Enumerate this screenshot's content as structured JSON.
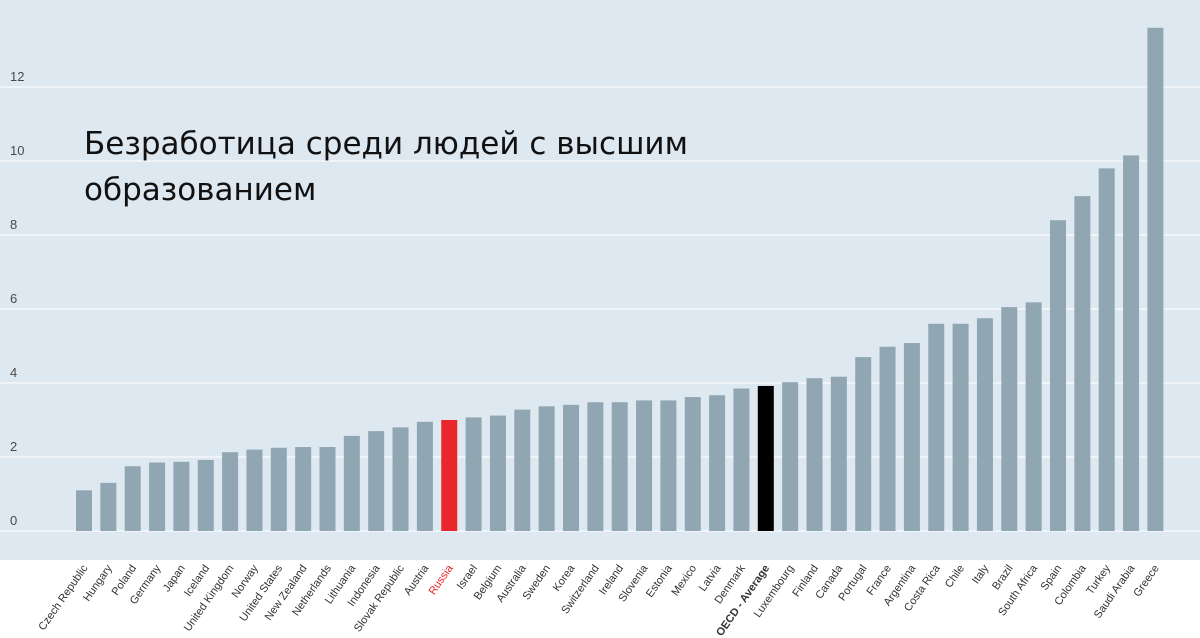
{
  "chart_data": {
    "type": "bar",
    "title": "Безработица среди людей с высшим образованием",
    "xlabel": "",
    "ylabel": "",
    "ylim": [
      0,
      13.6
    ],
    "yticks": [
      0,
      2,
      4,
      6,
      8,
      10,
      12
    ],
    "grid": true,
    "legend": "none",
    "colors": {
      "default": "#91a6b3",
      "highlight_russia": "#e8262b",
      "highlight_oecd_average": "#000000",
      "highlight_russia_label": "#e8262b",
      "label_default": "#333333",
      "plot_background": "#dde8f0"
    },
    "highlights": {
      "Russia": "highlight_russia",
      "OECD - Average": "highlight_oecd_average"
    },
    "categories": [
      "Czech Republic",
      "Hungary",
      "Poland",
      "Germany",
      "Japan",
      "Iceland",
      "United Kingdom",
      "Norway",
      "United States",
      "New Zealand",
      "Netherlands",
      "Lithuania",
      "Indonesia",
      "Slovak Republic",
      "Austria",
      "Russia",
      "Israel",
      "Belgium",
      "Australia",
      "Sweden",
      "Korea",
      "Switzerland",
      "Ireland",
      "Slovenia",
      "Estonia",
      "Mexico",
      "Latvia",
      "Denmark",
      "OECD - Average",
      "Luxembourg",
      "Finland",
      "Canada",
      "Portugal",
      "France",
      "Argentina",
      "Costa Rica",
      "Chile",
      "Italy",
      "Brazil",
      "South Africa",
      "Spain",
      "Colombia",
      "Turkey",
      "Saudi Arabia",
      "Greece"
    ],
    "values": [
      1.1,
      1.3,
      1.75,
      1.85,
      1.87,
      1.92,
      2.13,
      2.2,
      2.25,
      2.27,
      2.27,
      2.57,
      2.7,
      2.8,
      2.95,
      3.0,
      3.07,
      3.12,
      3.28,
      3.37,
      3.41,
      3.48,
      3.48,
      3.53,
      3.53,
      3.62,
      3.67,
      3.85,
      3.92,
      4.02,
      4.13,
      4.17,
      4.7,
      4.98,
      5.08,
      5.6,
      5.6,
      5.75,
      6.05,
      6.18,
      8.4,
      9.05,
      9.8,
      10.15,
      13.6
    ]
  }
}
